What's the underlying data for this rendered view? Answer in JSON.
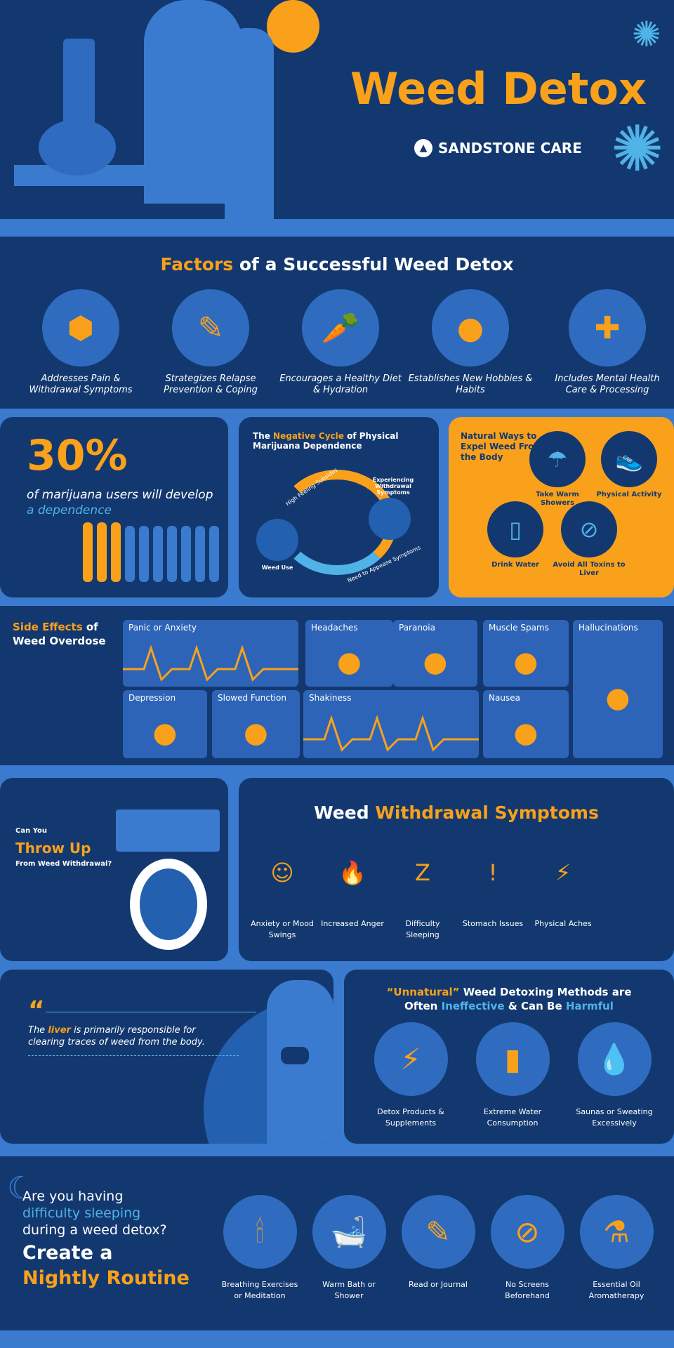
{
  "header": {
    "title": "Weed Detox",
    "brand": "SANDSTONE CARE"
  },
  "factors": {
    "title_highlight": "Factors",
    "title_rest": " of a Successful Weed Detox",
    "items": [
      {
        "label": "Addresses Pain & Withdrawal Symptoms",
        "icon": "pill-bag-icon"
      },
      {
        "label": "Strategizes Relapse Prevention & Coping",
        "icon": "notebook-pencil-icon"
      },
      {
        "label": "Encourages a Healthy Diet & Hydration",
        "icon": "water-carrot-icon"
      },
      {
        "label": "Establishes New Hobbies & Habits",
        "icon": "sports-balls-icon"
      },
      {
        "label": "Includes Mental Health Care & Processing",
        "icon": "brain-plus-icon"
      }
    ]
  },
  "stat": {
    "value": "30%",
    "text": "of marijuana users will develop",
    "text_highlight": "a dependence"
  },
  "cycle": {
    "title_pre": "The ",
    "title_highlight": "Negative Cycle",
    "title_post": " of Physical Marijuana Dependence",
    "steps": [
      "High Feeling Subsides",
      "Experiencing Withdrawal Symptoms",
      "Need to Appease Symptoms",
      "Weed Use"
    ]
  },
  "natural": {
    "title": "Natural Ways to Expel Weed From the Body",
    "items": [
      {
        "label": "Take Warm Showers",
        "icon": "shower-icon"
      },
      {
        "label": "Physical Activity",
        "icon": "sneaker-icon"
      },
      {
        "label": "Drink Water",
        "icon": "water-glass-icon"
      },
      {
        "label": "Avoid All Toxins to Liver",
        "icon": "no-alcohol-icon"
      }
    ]
  },
  "side_effects": {
    "title_highlight": "Side Effects",
    "title_rest": " of Weed Overdose",
    "items": [
      "Panic or Anxiety",
      "Headaches",
      "Paranoia",
      "Muscle Spams",
      "Hallucinations",
      "Depression",
      "Slowed Function",
      "Shakiness",
      "Nausea"
    ]
  },
  "throwup": {
    "line1": "Can You",
    "highlight": "Throw Up",
    "line3": "From Weed Withdrawal?"
  },
  "withdrawal": {
    "title_pre": "Weed ",
    "title_highlight": "Withdrawal Symptoms",
    "items": [
      {
        "label": "Anxiety or Mood Swings",
        "icon": "masks-icon"
      },
      {
        "label": "Increased Anger",
        "icon": "flame-icon"
      },
      {
        "label": "Difficulty Sleeping",
        "icon": "zzz-icon"
      },
      {
        "label": "Stomach Issues",
        "icon": "stomach-icon"
      },
      {
        "label": "Physical Aches",
        "icon": "lightning-icon"
      }
    ]
  },
  "liver": {
    "pre": "The ",
    "highlight": "liver",
    "post": " is primarily responsible for clearing traces of weed from the body."
  },
  "unnatural": {
    "q": "“Unnatural”",
    "t1": " Weed Detoxing Methods are",
    "t2": "Often ",
    "t3": "Ineffective",
    "t4": " & Can Be ",
    "t5": "Harmful",
    "items": [
      {
        "label": "Detox Products & Supplements",
        "icon": "supplements-icon"
      },
      {
        "label": "Extreme Water Consumption",
        "icon": "water-bottles-icon"
      },
      {
        "label": "Saunas or Sweating Excessively",
        "icon": "sweat-drop-icon"
      }
    ]
  },
  "nightly": {
    "q1": "Are you having",
    "q2": "difficulty sleeping",
    "q3": "during a weed detox?",
    "c1": "Create a",
    "c2": "Nightly Routine",
    "items": [
      {
        "label": "Breathing Exercises or Meditation",
        "icon": "candle-icon"
      },
      {
        "label": "Warm Bath or Shower",
        "icon": "bathtub-icon"
      },
      {
        "label": "Read or Journal",
        "icon": "journal-icon"
      },
      {
        "label": "No Screens Beforehand",
        "icon": "no-phone-icon"
      },
      {
        "label": "Essential Oil Aromatherapy",
        "icon": "oil-dropper-icon"
      }
    ]
  },
  "colors": {
    "navy": "#13386f",
    "accent": "#f9a11b",
    "light_blue": "#3a7bd0",
    "cyan": "#4fb3e8"
  }
}
